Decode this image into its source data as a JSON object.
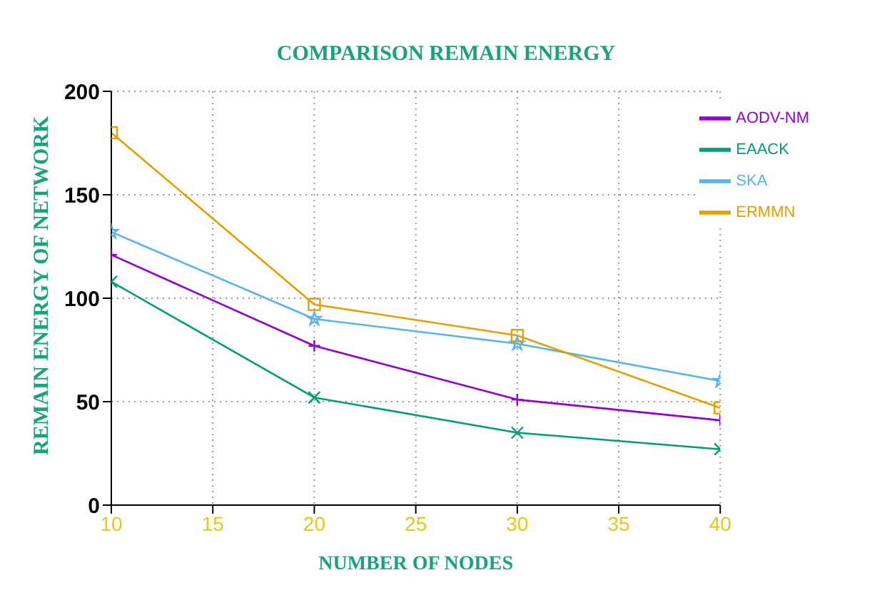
{
  "chart_data": {
    "type": "line",
    "title": "COMPARISON REMAIN ENERGY",
    "xlabel": "NUMBER OF NODES",
    "ylabel": "REMAIN ENERGY OF NETWORK",
    "x": [
      10,
      20,
      30,
      40
    ],
    "series": [
      {
        "name": "AODV-NM",
        "color": "#9400d3",
        "marker": "cross",
        "values": [
          121,
          77,
          51,
          41
        ]
      },
      {
        "name": "EAACK",
        "color": "#009e73",
        "marker": "x",
        "values": [
          108,
          52,
          35,
          27
        ]
      },
      {
        "name": "SKA",
        "color": "#56b4e9",
        "marker": "star",
        "values": [
          132,
          90,
          78,
          60
        ]
      },
      {
        "name": "ERMMN",
        "color": "#e69f00",
        "marker": "square",
        "values": [
          180,
          97,
          82,
          47
        ]
      }
    ],
    "xlim": [
      10,
      40
    ],
    "xticks": [
      10,
      15,
      20,
      25,
      30,
      35,
      40
    ],
    "ylim": [
      0,
      200
    ],
    "yticks": [
      0,
      50,
      100,
      150,
      200
    ],
    "grid": true,
    "legend": "top right",
    "line_style": "solid"
  }
}
